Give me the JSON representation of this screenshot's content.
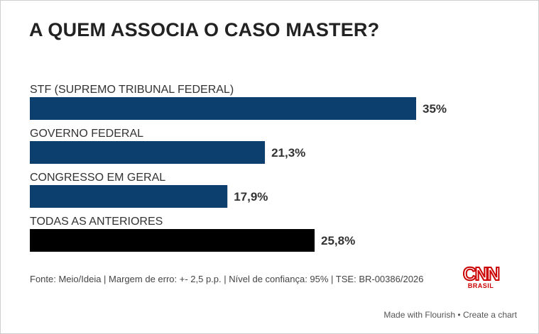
{
  "chart_data": {
    "type": "bar",
    "orientation": "horizontal",
    "title": "A QUEM ASSOCIA O CASO MASTER?",
    "categories": [
      "STF (SUPREMO TRIBUNAL FEDERAL)",
      "GOVERNO FEDERAL",
      "CONGRESSO EM GERAL",
      "TODAS AS ANTERIORES"
    ],
    "values": [
      35,
      21.3,
      17.9,
      25.8
    ],
    "value_labels": [
      "35%",
      "21,3%",
      "17,9%",
      "25,8%"
    ],
    "bar_colors": [
      "#0d3f6e",
      "#0d3f6e",
      "#0d3f6e",
      "#000000"
    ],
    "xlim": [
      0,
      35
    ],
    "grid": false,
    "legend": "none"
  },
  "source": "Fonte: Meio/Ideia | Margem de erro: +- 2,5 p.p. | Nível de confiança: 95% | TSE: BR-00386/2026",
  "logo": {
    "name": "CNN",
    "sub": "BRASIL",
    "color": "#cc0000"
  },
  "footer": {
    "made_with": "Made with Flourish",
    "separator": "•",
    "create": "Create a chart"
  }
}
